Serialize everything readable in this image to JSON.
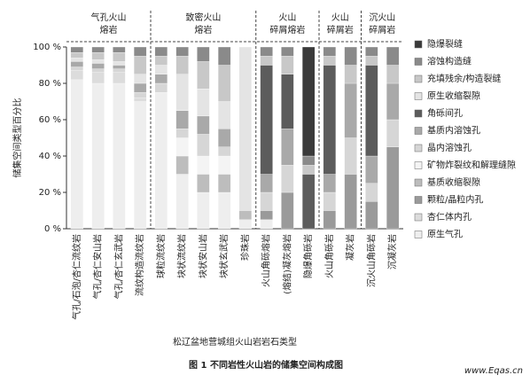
{
  "chart_data": {
    "type": "stacked_bar",
    "group_titles": [
      [
        "气孔火山",
        "熔岩"
      ],
      [
        "致密火山",
        "熔岩"
      ],
      [
        "火山",
        "碎屑熔岩"
      ],
      [
        "火山",
        "碎屑岩"
      ],
      [
        "沉火山",
        "碎屑岩"
      ]
    ],
    "y_label": "储集空间类型百分比",
    "x_label": "松辽盆地营城组火山岩岩石类型",
    "caption": "图 1   不同岩性火山岩的储集空间构成图",
    "watermark": "www.Eqas.cn",
    "categories": [
      "气孔/石泡/杏仁流纹岩",
      "气孔/杏仁安山岩",
      "气孔/杏仁玄武岩",
      "流纹构造流纹岩",
      "球粒流纹岩",
      "块状流纹岩",
      "块状安山岩",
      "块状玄武岩",
      "珍珠岩",
      "火山角砾熔岩",
      "(熔结)凝灰熔岩",
      "隐爆角砾岩",
      "火山角砾岩",
      "凝灰岩",
      "沉火山角砾岩",
      "沉凝灰岩"
    ],
    "ylim": [
      0,
      100
    ],
    "yticks": [
      {
        "value": 0,
        "label": "0 %"
      },
      {
        "value": 20,
        "label": "20 %"
      },
      {
        "value": 40,
        "label": "40 %"
      },
      {
        "value": 60,
        "label": "60 %"
      },
      {
        "value": 80,
        "label": "80 %"
      },
      {
        "value": 100,
        "label": "100 %"
      }
    ],
    "series": [
      {
        "name": "隐爆裂缝",
        "color": "#3a3a3a",
        "values": [
          0,
          0,
          0,
          0,
          0,
          0,
          0,
          0,
          0,
          0,
          0,
          60,
          0,
          0,
          0,
          0
        ]
      },
      {
        "name": "溶蚀构造缝",
        "color": "#8a8a8a",
        "values": [
          3,
          3,
          3,
          5,
          5,
          5,
          8,
          10,
          0,
          5,
          5,
          5,
          5,
          10,
          5,
          10
        ]
      },
      {
        "name": "充填残余/构造裂缝",
        "color": "#c8c8c8",
        "values": [
          3,
          4,
          5,
          10,
          5,
          10,
          15,
          20,
          0,
          5,
          10,
          5,
          5,
          10,
          5,
          10
        ]
      },
      {
        "name": "原生收缩裂隙",
        "color": "#e4e4e4",
        "values": [
          2,
          2,
          2,
          5,
          5,
          20,
          15,
          15,
          90,
          0,
          0,
          0,
          0,
          0,
          0,
          0
        ]
      },
      {
        "name": "角砾间孔",
        "color": "#5c5c5c",
        "values": [
          0,
          0,
          0,
          0,
          0,
          0,
          0,
          0,
          0,
          60,
          30,
          30,
          60,
          0,
          50,
          0
        ]
      },
      {
        "name": "基质内溶蚀孔",
        "color": "#a9a9a9",
        "values": [
          3,
          3,
          2,
          5,
          5,
          10,
          10,
          10,
          0,
          10,
          20,
          0,
          10,
          30,
          15,
          20
        ]
      },
      {
        "name": "晶内溶蚀孔",
        "color": "#d6d6d6",
        "values": [
          2,
          2,
          2,
          3,
          5,
          5,
          12,
          5,
          0,
          10,
          15,
          0,
          10,
          20,
          10,
          15
        ]
      },
      {
        "name": "矿物炸裂纹和解理缝隙",
        "color": "#f4f4f4",
        "values": [
          0,
          0,
          0,
          0,
          0,
          10,
          10,
          10,
          0,
          0,
          0,
          0,
          0,
          0,
          0,
          0
        ]
      },
      {
        "name": "基质收缩裂隙",
        "color": "#bdbdbd",
        "values": [
          0,
          0,
          0,
          0,
          0,
          10,
          10,
          10,
          5,
          0,
          0,
          0,
          0,
          0,
          0,
          0
        ]
      },
      {
        "name": "颗粒/晶粒内孔",
        "color": "#9a9a9a",
        "values": [
          0,
          0,
          0,
          0,
          0,
          0,
          0,
          0,
          0,
          5,
          20,
          0,
          10,
          30,
          15,
          45
        ]
      },
      {
        "name": "杏仁体内孔",
        "color": "#dcdcdc",
        "values": [
          5,
          6,
          6,
          2,
          0,
          0,
          0,
          0,
          0,
          0,
          0,
          0,
          0,
          0,
          0,
          0
        ]
      },
      {
        "name": "原生气孔",
        "color": "#eeeeee",
        "values": [
          82,
          80,
          80,
          70,
          75,
          30,
          20,
          20,
          5,
          5,
          0,
          0,
          0,
          0,
          0,
          0
        ]
      }
    ]
  }
}
